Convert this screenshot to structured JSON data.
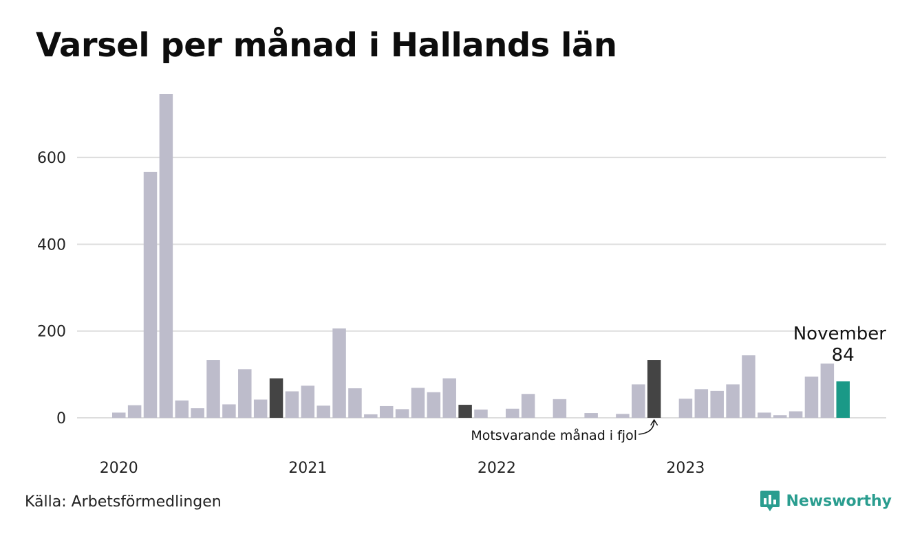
{
  "title": "Varsel per månad i Hallands län",
  "source": "Källa: Arbetsförmedlingen",
  "brand": "Newsworthy",
  "colors": {
    "bar": "#bdbccb",
    "highlight_prev_year": "#444444",
    "highlight_current": "#1a9987",
    "grid": "#dddddd",
    "brand": "#2a9d8f"
  },
  "icons": {
    "brand": "bar-chart-speech-bubble-icon"
  },
  "chart_data": {
    "type": "bar",
    "x": [
      "2020-01",
      "2020-02",
      "2020-03",
      "2020-04",
      "2020-05",
      "2020-06",
      "2020-07",
      "2020-08",
      "2020-09",
      "2020-10",
      "2020-11",
      "2020-12",
      "2021-01",
      "2021-02",
      "2021-03",
      "2021-04",
      "2021-05",
      "2021-06",
      "2021-07",
      "2021-08",
      "2021-09",
      "2021-10",
      "2021-11",
      "2021-12",
      "2022-01",
      "2022-02",
      "2022-03",
      "2022-04",
      "2022-05",
      "2022-06",
      "2022-07",
      "2022-08",
      "2022-09",
      "2022-10",
      "2022-11",
      "2022-12",
      "2023-01",
      "2023-02",
      "2023-03",
      "2023-04",
      "2023-05",
      "2023-06",
      "2023-07",
      "2023-08",
      "2023-09",
      "2023-10",
      "2023-11"
    ],
    "values": [
      12,
      29,
      567,
      746,
      40,
      22,
      133,
      31,
      112,
      42,
      91,
      61,
      74,
      28,
      206,
      68,
      8,
      27,
      20,
      69,
      59,
      91,
      30,
      19,
      0,
      21,
      55,
      0,
      43,
      0,
      11,
      0,
      9,
      77,
      133,
      0,
      44,
      66,
      62,
      77,
      144,
      12,
      6,
      15,
      95,
      125,
      84
    ],
    "ylim": [
      0,
      750
    ],
    "yticks": [
      0,
      200,
      400,
      600
    ],
    "x_tick_labels": [
      "2020",
      "2021",
      "2022",
      "2023"
    ],
    "highlights": [
      {
        "month": "2020-11",
        "role": "prev_year"
      },
      {
        "month": "2021-11",
        "role": "prev_year"
      },
      {
        "month": "2022-11",
        "role": "prev_year"
      },
      {
        "month": "2023-11",
        "role": "current"
      }
    ],
    "annotations": {
      "current_month": "November",
      "current_value": "84",
      "prev_year_label": "Motsvarande månad i fjol"
    },
    "grid": true,
    "legend": "none"
  }
}
